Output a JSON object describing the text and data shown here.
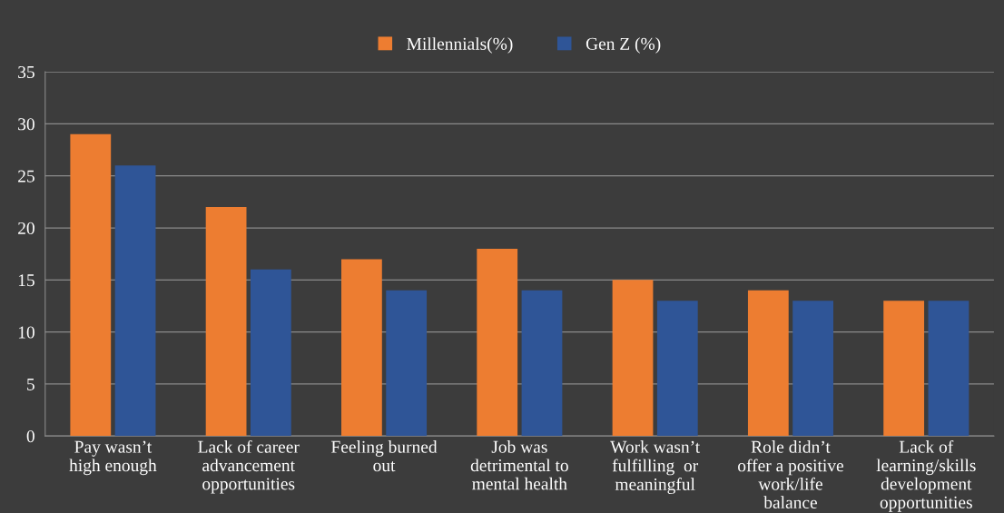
{
  "chart_data": {
    "type": "bar",
    "categories": [
      "Pay wasn’t\nhigh enough",
      "Lack of career\nadvancement\nopportunities",
      "Feeling burned\nout",
      "Job was\ndetrimental to\nmental health",
      "Work wasn’t\nfulfilling  or\nmeaningful",
      "Role didn’t\noffer a positive\nwork/life\nbalance",
      "Lack of\nlearning/skills\ndevelopment\nopportunities"
    ],
    "series": [
      {
        "name": "Millennials(%)",
        "color": "#ed7d31",
        "values": [
          29,
          22,
          17,
          18,
          15,
          14,
          13
        ]
      },
      {
        "name": "Gen Z (%)",
        "color": "#2f5597",
        "values": [
          26,
          16,
          14,
          14,
          13,
          13,
          13
        ]
      }
    ],
    "ylim": [
      0,
      35
    ],
    "yticks": [
      0,
      5,
      10,
      15,
      20,
      25,
      30,
      35
    ],
    "grid": "y",
    "legend": "top"
  }
}
